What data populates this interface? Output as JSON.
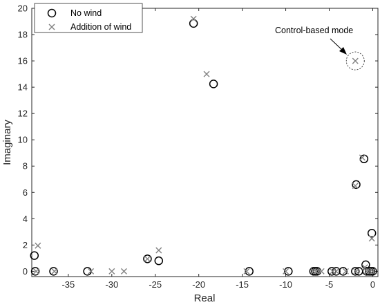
{
  "chart_data": {
    "type": "scatter",
    "xlabel": "Real",
    "ylabel": "Imaginary",
    "xlim": [
      -39.2,
      0.6
    ],
    "ylim": [
      -0.4,
      20
    ],
    "xticks": [
      -35,
      -30,
      -25,
      -20,
      -15,
      -10,
      -5,
      0
    ],
    "xtick_labels": [
      "-35",
      "-30",
      "-25",
      "-20",
      "-15",
      "-10",
      "-5",
      "0"
    ],
    "yticks": [
      0,
      2,
      4,
      6,
      8,
      10,
      12,
      14,
      16,
      18,
      20
    ],
    "ytick_labels": [
      "0",
      "2",
      "4",
      "6",
      "8",
      "10",
      "12",
      "14",
      "16",
      "18",
      "20"
    ],
    "grid": false,
    "legend_position": "top-left",
    "series": [
      {
        "name": "No wind",
        "marker": "circle",
        "color": "#000000",
        "points": [
          [
            -38.9,
            1.2
          ],
          [
            -38.8,
            0.0
          ],
          [
            -36.7,
            0.0
          ],
          [
            -32.8,
            0.0
          ],
          [
            -25.9,
            0.95
          ],
          [
            -24.6,
            0.8
          ],
          [
            -20.6,
            18.85
          ],
          [
            -18.3,
            14.25
          ],
          [
            -14.2,
            0.0
          ],
          [
            -9.7,
            0.0
          ],
          [
            -6.8,
            0.0
          ],
          [
            -6.6,
            0.0
          ],
          [
            -6.4,
            0.0
          ],
          [
            -4.7,
            0.0
          ],
          [
            -4.2,
            0.0
          ],
          [
            -3.4,
            0.0
          ],
          [
            -2.0,
            0.0
          ],
          [
            -1.9,
            6.6
          ],
          [
            -1.6,
            0.0
          ],
          [
            -1.0,
            8.55
          ],
          [
            -0.8,
            0.5
          ],
          [
            -0.7,
            0.0
          ],
          [
            -0.4,
            0.0
          ],
          [
            -0.2,
            0.0
          ],
          [
            -0.1,
            2.9
          ],
          [
            0.0,
            0.0
          ]
        ]
      },
      {
        "name": "Addition of wind",
        "marker": "x",
        "color": "#808080",
        "points": [
          [
            -38.5,
            1.95
          ],
          [
            -38.7,
            0.0
          ],
          [
            -36.6,
            0.0
          ],
          [
            -32.4,
            0.0
          ],
          [
            -30.0,
            0.0
          ],
          [
            -28.6,
            0.0
          ],
          [
            -25.9,
            0.95
          ],
          [
            -24.6,
            1.6
          ],
          [
            -20.6,
            19.2
          ],
          [
            -19.1,
            15.0
          ],
          [
            -14.5,
            0.0
          ],
          [
            -10.0,
            0.0
          ],
          [
            -6.8,
            0.0
          ],
          [
            -6.5,
            0.0
          ],
          [
            -5.9,
            0.0
          ],
          [
            -4.6,
            0.0
          ],
          [
            -4.2,
            0.0
          ],
          [
            -3.1,
            0.0
          ],
          [
            -2.0,
            16.0
          ],
          [
            -2.0,
            6.5
          ],
          [
            -1.9,
            0.0
          ],
          [
            -1.2,
            8.65
          ],
          [
            -0.9,
            0.3
          ],
          [
            -0.7,
            0.0
          ],
          [
            -0.3,
            0.0
          ],
          [
            -0.1,
            2.5
          ],
          [
            0.0,
            0.0
          ]
        ]
      }
    ],
    "annotation": {
      "text": "Control-based mode",
      "target": [
        -2.0,
        16.0
      ]
    }
  }
}
